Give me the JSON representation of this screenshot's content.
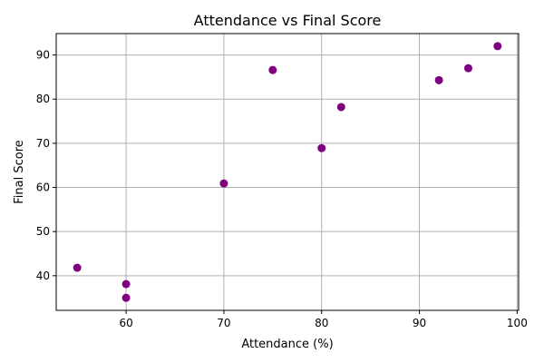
{
  "chart_data": {
    "type": "scatter",
    "title": "Attendance vs Final Score",
    "xlabel": "Attendance (%)",
    "ylabel": "Final Score",
    "xlim": [
      52.85,
      100.15
    ],
    "ylim": [
      32.15,
      94.85
    ],
    "xticks": [
      60,
      70,
      80,
      90,
      100
    ],
    "yticks": [
      40,
      50,
      60,
      70,
      80,
      90
    ],
    "grid": true,
    "marker_color": "#800080",
    "points": [
      {
        "x": 55,
        "y": 41.8
      },
      {
        "x": 60,
        "y": 38.1
      },
      {
        "x": 60,
        "y": 35.0
      },
      {
        "x": 70,
        "y": 60.9
      },
      {
        "x": 75,
        "y": 86.6
      },
      {
        "x": 80,
        "y": 68.9
      },
      {
        "x": 82,
        "y": 78.2
      },
      {
        "x": 92,
        "y": 84.3
      },
      {
        "x": 95,
        "y": 87.0
      },
      {
        "x": 98,
        "y": 92.0
      }
    ]
  }
}
